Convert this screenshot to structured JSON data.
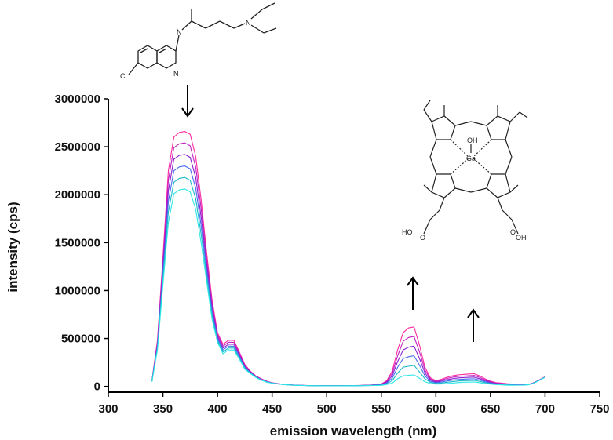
{
  "chart_data": {
    "type": "line",
    "title": "",
    "xlabel": "emission wavelength (nm)",
    "ylabel": "intensity (cps)",
    "xlim": [
      300,
      750
    ],
    "ylim": [
      -60000,
      3000000
    ],
    "x_ticks": [
      300,
      350,
      400,
      450,
      500,
      550,
      600,
      650,
      700,
      750
    ],
    "x_tick_labels": [
      "300",
      "350",
      "400",
      "450",
      "500",
      "550",
      "600",
      "650",
      "700",
      "750"
    ],
    "y_ticks": [
      0,
      500000,
      1000000,
      1500000,
      2000000,
      2500000,
      3000000
    ],
    "y_tick_labels": [
      "0",
      "500000",
      "1000000",
      "1500000",
      "2000000",
      "2500000",
      "3000000"
    ],
    "grid": false,
    "legend": "none",
    "x": [
      340,
      345,
      350,
      355,
      360,
      365,
      370,
      375,
      380,
      385,
      390,
      395,
      400,
      405,
      410,
      415,
      420,
      425,
      430,
      435,
      440,
      445,
      450,
      460,
      470,
      480,
      490,
      500,
      510,
      520,
      530,
      540,
      550,
      555,
      560,
      565,
      570,
      575,
      580,
      585,
      590,
      595,
      600,
      605,
      610,
      615,
      620,
      625,
      630,
      635,
      640,
      645,
      650,
      655,
      660,
      665,
      670,
      675,
      680,
      685,
      690,
      695,
      700
    ],
    "series": [
      {
        "color": "#ff2aa0",
        "values": [
          60000,
          480000,
          1350000,
          2250000,
          2600000,
          2650000,
          2660000,
          2630000,
          2400000,
          1950000,
          1400000,
          900000,
          560000,
          440000,
          480000,
          480000,
          360000,
          230000,
          160000,
          110000,
          80000,
          55000,
          38000,
          22000,
          14000,
          10000,
          8000,
          7000,
          7000,
          8000,
          10000,
          14000,
          25000,
          60000,
          160000,
          380000,
          560000,
          610000,
          620000,
          430000,
          200000,
          90000,
          60000,
          75000,
          95000,
          110000,
          120000,
          125000,
          130000,
          132000,
          110000,
          80000,
          55000,
          40000,
          35000,
          28000,
          24000,
          20000,
          18000,
          22000,
          40000,
          70000,
          100000
        ]
      },
      {
        "color": "#c020c0",
        "values": [
          58000,
          460000,
          1300000,
          2150000,
          2490000,
          2530000,
          2540000,
          2510000,
          2290000,
          1860000,
          1340000,
          860000,
          540000,
          420000,
          460000,
          460000,
          345000,
          220000,
          155000,
          106000,
          77000,
          53000,
          37000,
          21000,
          13500,
          9800,
          7800,
          6900,
          6900,
          7700,
          9500,
          13000,
          23000,
          52000,
          135000,
          320000,
          470000,
          510000,
          520000,
          360000,
          170000,
          78000,
          52000,
          65000,
          82000,
          95000,
          104000,
          108000,
          112000,
          114000,
          95000,
          69000,
          48000,
          35000,
          31000,
          25000,
          21500,
          18500,
          17000,
          21000,
          39000,
          69000,
          99000
        ]
      },
      {
        "color": "#8a1fd0",
        "values": [
          56000,
          440000,
          1240000,
          2040000,
          2370000,
          2410000,
          2420000,
          2390000,
          2180000,
          1770000,
          1280000,
          820000,
          520000,
          400000,
          440000,
          440000,
          330000,
          210000,
          150000,
          103000,
          74000,
          51000,
          36000,
          20500,
          13000,
          9600,
          7600,
          6800,
          6800,
          7500,
          9000,
          12000,
          20000,
          44000,
          110000,
          260000,
          380000,
          410000,
          420000,
          290000,
          140000,
          66000,
          45000,
          55000,
          69000,
          80000,
          88000,
          92000,
          95000,
          97000,
          81000,
          59000,
          42000,
          31000,
          27000,
          22000,
          19000,
          17000,
          16000,
          20000,
          38000,
          68000,
          98000
        ]
      },
      {
        "color": "#4a6cf0",
        "values": [
          54000,
          420000,
          1180000,
          1930000,
          2250000,
          2290000,
          2300000,
          2270000,
          2070000,
          1680000,
          1220000,
          780000,
          500000,
          380000,
          420000,
          420000,
          315000,
          200000,
          145000,
          100000,
          71000,
          49000,
          35000,
          20000,
          12500,
          9400,
          7400,
          6700,
          6700,
          7300,
          8500,
          11000,
          17000,
          36000,
          85000,
          200000,
          290000,
          310000,
          320000,
          220000,
          110000,
          54000,
          38000,
          45000,
          56000,
          65000,
          72000,
          76000,
          78000,
          80000,
          67000,
          49000,
          36000,
          27000,
          23000,
          19000,
          16500,
          15500,
          15000,
          19000,
          37000,
          67000,
          97000
        ]
      },
      {
        "color": "#19b8c8",
        "values": [
          52000,
          400000,
          1120000,
          1820000,
          2130000,
          2170000,
          2180000,
          2150000,
          1960000,
          1590000,
          1160000,
          740000,
          480000,
          360000,
          400000,
          400000,
          300000,
          190000,
          140000,
          97000,
          68000,
          47000,
          34000,
          19500,
          12000,
          9200,
          7200,
          6600,
          6600,
          7100,
          8000,
          10000,
          14000,
          28000,
          60000,
          140000,
          200000,
          210000,
          220000,
          150000,
          80000,
          42000,
          31000,
          35000,
          43000,
          50000,
          56000,
          60000,
          61000,
          63000,
          53000,
          39000,
          30000,
          23000,
          19000,
          16000,
          14000,
          14000,
          14000,
          18000,
          36000,
          66000,
          96000
        ]
      },
      {
        "color": "#2ee6e6",
        "values": [
          50000,
          380000,
          1060000,
          1710000,
          2010000,
          2050000,
          2060000,
          2030000,
          1850000,
          1500000,
          1100000,
          700000,
          460000,
          340000,
          380000,
          380000,
          285000,
          180000,
          135000,
          94000,
          65000,
          45000,
          33000,
          19000,
          11500,
          9000,
          7000,
          6500,
          6500,
          6900,
          7500,
          9000,
          11000,
          20000,
          35000,
          80000,
          110000,
          115000,
          120000,
          85000,
          50000,
          30000,
          24000,
          25000,
          30000,
          35000,
          40000,
          44000,
          45000,
          46000,
          39000,
          30000,
          24000,
          19000,
          16000,
          13000,
          12000,
          12500,
          13000,
          17000,
          35000,
          65000,
          95000
        ]
      }
    ]
  }
}
